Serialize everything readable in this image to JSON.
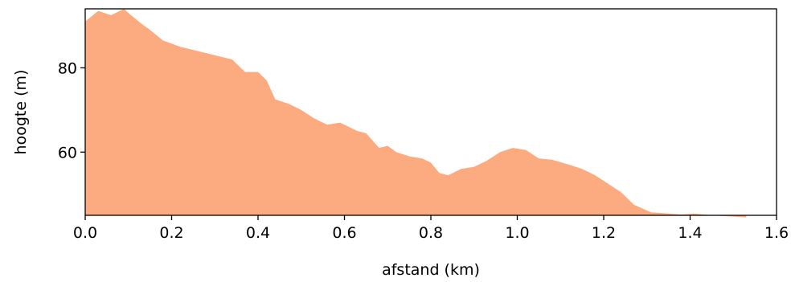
{
  "chart_data": {
    "type": "area",
    "title": "",
    "xlabel": "afstand (km)",
    "ylabel": "hoogte (m)",
    "xlim": [
      0.0,
      1.6
    ],
    "ylim": [
      45,
      94
    ],
    "grid": false,
    "x_ticks": [
      "0.0",
      "0.2",
      "0.4",
      "0.6",
      "0.8",
      "1.0",
      "1.2",
      "1.4",
      "1.6"
    ],
    "y_ticks": [
      "60",
      "80"
    ],
    "fill_color": "#fcaa80",
    "series": [
      {
        "x": [
          0.0,
          0.03,
          0.06,
          0.09,
          0.1,
          0.13,
          0.15,
          0.18,
          0.22,
          0.26,
          0.3,
          0.34,
          0.37,
          0.4,
          0.42,
          0.44,
          0.47,
          0.5,
          0.53,
          0.56,
          0.59,
          0.6,
          0.63,
          0.65,
          0.68,
          0.7,
          0.72,
          0.75,
          0.78,
          0.8,
          0.82,
          0.84,
          0.87,
          0.9,
          0.93,
          0.96,
          0.99,
          1.02,
          1.05,
          1.08,
          1.12,
          1.15,
          1.18,
          1.21,
          1.24,
          1.27,
          1.31,
          1.34,
          1.38,
          1.41,
          1.45,
          1.48,
          1.53
        ],
        "values": [
          91,
          93.5,
          92.5,
          94,
          93,
          90.5,
          89,
          86.5,
          85,
          84,
          83,
          82,
          79,
          79,
          77,
          72.5,
          71.5,
          70,
          68,
          66.5,
          67,
          66.5,
          65,
          64.5,
          61,
          61.5,
          60,
          59,
          58.5,
          57.5,
          55,
          54.5,
          56,
          56.5,
          58,
          60,
          61,
          60.5,
          58.5,
          58.2,
          57,
          56,
          54.5,
          52.5,
          50.5,
          47.5,
          45.7,
          45.5,
          45.2,
          45.4,
          45,
          44.8,
          44.5
        ]
      }
    ]
  }
}
